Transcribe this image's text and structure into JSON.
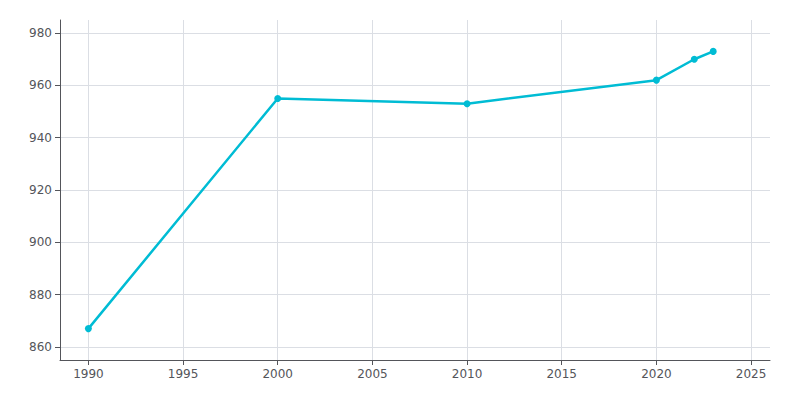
{
  "chart_data": {
    "type": "line",
    "x": [
      1990,
      2000,
      2010,
      2020,
      2022,
      2023
    ],
    "values": [
      867,
      955,
      953,
      962,
      970,
      973
    ],
    "color": "#00bcd4",
    "marker": "circle",
    "xlim": [
      1988.5,
      2026
    ],
    "xticks": [
      1990,
      1995,
      2000,
      2005,
      2010,
      2015,
      2020,
      2025
    ],
    "ylim": [
      855,
      985
    ],
    "yticks": [
      860,
      880,
      900,
      920,
      940,
      960,
      980
    ],
    "grid": true
  }
}
